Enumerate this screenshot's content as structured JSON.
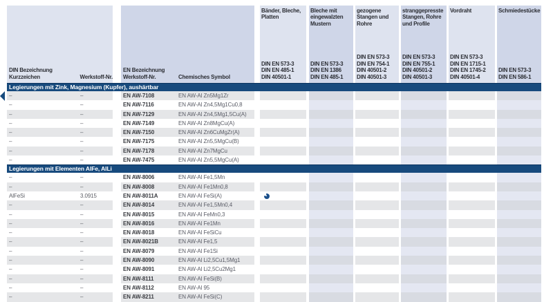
{
  "header": {
    "col_din": "DIN Bezeichnung\nKurzzeichen",
    "col_werkstoff": "Werkstoff-Nr.",
    "col_en": "EN Bezeichnung\nWerkstoff-Nr.",
    "col_symbol": "Chemisches Symbol",
    "din_columns": [
      {
        "title": "Bänder, Bleche, Platten",
        "standards": [
          "DIN EN 573-3",
          "DIN EN 485-1",
          "DIN 40501-1"
        ]
      },
      {
        "title": "Bleche mit eingewalzten Mustern",
        "standards": [
          "DIN EN 573-3",
          "DIN EN 1386",
          "DIN EN 485-1"
        ]
      },
      {
        "title": "gezogene Stangen und Rohre",
        "standards": [
          "DIN EN 573-3",
          "DIN EN 754-1",
          "DIN 40501-2",
          "DIN 40501-3"
        ]
      },
      {
        "title": "stranggepresste Stangen, Rohre und Profile",
        "standards": [
          "DIN EN 573-3",
          "DIN EN 755-1",
          "DIN 40501-2",
          "DIN 40501-3"
        ]
      },
      {
        "title": "Vordraht",
        "standards": [
          "DIN EN 573-3",
          "DIN EN 1715-1",
          "DIN EN 1745-2",
          "DIN 40501-4"
        ]
      },
      {
        "title": "Schmiedestücke",
        "standards": [
          "DIN EN 573-3",
          "DIN EN 586-1"
        ]
      }
    ]
  },
  "sections": [
    {
      "title": "Legierungen mit Zink, Magnesium (Kupfer), aushärtbar",
      "first_row_shaded": true,
      "rows": [
        {
          "din": "–",
          "werkstoff": "–",
          "en_nr": "EN AW-7108",
          "symbol": "EN AW-Al Zn5Mg1Zr"
        },
        {
          "din": "–",
          "werkstoff": "–",
          "en_nr": "EN AW-7116",
          "symbol": "EN AW-Al Zn4,5Mg1Cu0,8"
        },
        {
          "din": "–",
          "werkstoff": "–",
          "en_nr": "EN AW-7129",
          "symbol": "EN AW-Al Zn4,5Mg1,5Cu(A)"
        },
        {
          "din": "–",
          "werkstoff": "–",
          "en_nr": "EN AW-7149",
          "symbol": "EN AW-Al Zn8MgCu(A)"
        },
        {
          "din": "–",
          "werkstoff": "–",
          "en_nr": "EN AW-7150",
          "symbol": "EN AW-Al Zn6CuMgZr(A)"
        },
        {
          "din": "–",
          "werkstoff": "–",
          "en_nr": "EN AW-7175",
          "symbol": "EN AW-Al Zn5,5MgCu(B)"
        },
        {
          "din": "–",
          "werkstoff": "–",
          "en_nr": "EN AW-7178",
          "symbol": "EN AW-Al Zn7MgCu"
        },
        {
          "din": "–",
          "werkstoff": "–",
          "en_nr": "EN AW-7475",
          "symbol": "EN AW-Al Zn5,5MgCu(A)"
        }
      ]
    },
    {
      "title": "Legierungen mit Elementen AlFe, AlLi",
      "first_row_shaded": false,
      "rows": [
        {
          "din": "–",
          "werkstoff": "–",
          "en_nr": "EN AW-8006",
          "symbol": "EN AW-Al Fe1,5Mn"
        },
        {
          "din": "–",
          "werkstoff": "–",
          "en_nr": "EN AW-8008",
          "symbol": "EN AW-Al Fe1Mn0,8"
        },
        {
          "din": "AlFeSi",
          "werkstoff": "3.0915",
          "en_nr": "EN AW-8011A",
          "symbol": "EN AW-Al FeSi(A)",
          "indicator": {
            "column": 0,
            "type": "three-quarter-filled-circle"
          }
        },
        {
          "din": "–",
          "werkstoff": "–",
          "en_nr": "EN AW-8014",
          "symbol": "EN AW-Al Fe1,5Mn0,4"
        },
        {
          "din": "–",
          "werkstoff": "–",
          "en_nr": "EN AW-8015",
          "symbol": "EN AW-Al FeMn0,3"
        },
        {
          "din": "–",
          "werkstoff": "–",
          "en_nr": "EN AW-8016",
          "symbol": "EN AW-Al Fe1Mn"
        },
        {
          "din": "–",
          "werkstoff": "–",
          "en_nr": "EN AW-8018",
          "symbol": "EN AW-Al FeSiCu"
        },
        {
          "din": "–",
          "werkstoff": "–",
          "en_nr": "EN AW-8021B",
          "symbol": "EN AW-Al Fe1,5"
        },
        {
          "din": "–",
          "werkstoff": "–",
          "en_nr": "EN AW-8079",
          "symbol": "EN AW-Al Fe1Si"
        },
        {
          "din": "–",
          "werkstoff": "–",
          "en_nr": "EN AW-8090",
          "symbol": "EN AW-Al Li2,5Cu1,5Mg1"
        },
        {
          "din": "–",
          "werkstoff": "–",
          "en_nr": "EN AW-8091",
          "symbol": "EN AW-Al Li2,5Cu2Mg1"
        },
        {
          "din": "–",
          "werkstoff": "–",
          "en_nr": "EN AW-8111",
          "symbol": "EN AW-Al FeSi(B)"
        },
        {
          "din": "–",
          "werkstoff": "–",
          "en_nr": "EN AW-8112",
          "symbol": "EN AW-Al 95"
        },
        {
          "din": "–",
          "werkstoff": "–",
          "en_nr": "EN AW-8211",
          "symbol": "EN AW-Al FeSi(C)"
        }
      ]
    }
  ],
  "pointer": {
    "section": 0,
    "row": 0
  },
  "colors": {
    "section_bar": "#174a7d",
    "header_light": "#dee3ef",
    "header_tint": "#cfd6e8",
    "row_shaded": "#e5e6e8",
    "row_shaded_tint": "#d8dbe2",
    "row_light": "#ffffff",
    "row_light_tint": "#e4e7f2",
    "indicator": "#1b4f8a"
  }
}
